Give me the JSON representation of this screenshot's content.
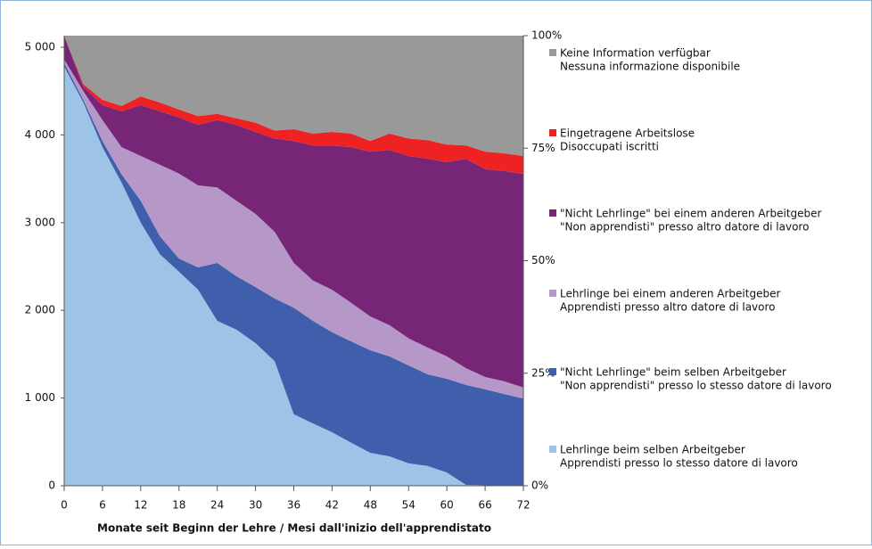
{
  "chart_data": {
    "type": "stacked_area",
    "x_label": "Monate seit Beginn der Lehre / Mesi dall'inizio dell'apprendistato",
    "x": [
      0,
      3,
      6,
      9,
      12,
      15,
      18,
      21,
      24,
      27,
      30,
      33,
      36,
      39,
      42,
      45,
      48,
      51,
      54,
      57,
      60,
      63,
      66,
      69,
      72
    ],
    "xlim": [
      0,
      72
    ],
    "xticks": [
      0,
      6,
      12,
      18,
      24,
      30,
      36,
      42,
      48,
      54,
      60,
      66,
      72
    ],
    "ylim": [
      0,
      5132
    ],
    "yticks": [
      0,
      {
        "value": 1000,
        "label": "1 000"
      },
      {
        "value": 2000,
        "label": "2 000"
      },
      {
        "value": 3000,
        "label": "3 000"
      },
      {
        "value": 4000,
        "label": "4 000"
      },
      {
        "value": 5000,
        "label": "5 000"
      }
    ],
    "y2lim": [
      0,
      100
    ],
    "y2ticks": [
      {
        "value": 0,
        "label": "0%"
      },
      {
        "value": 25,
        "label": "25%"
      },
      {
        "value": 50,
        "label": "50%"
      },
      {
        "value": 75,
        "label": "75%"
      },
      {
        "value": 100,
        "label": "100%"
      }
    ],
    "series": [
      {
        "name": [
          "Lehrlinge beim selben Arbeitgeber",
          "Apprendisti presso lo stesso datore di lavoro"
        ],
        "color": "#9dc3e6",
        "values": [
          4780,
          4370,
          3860,
          3455,
          3000,
          2640,
          2440,
          2235,
          1880,
          1780,
          1626,
          1420,
          815,
          710,
          610,
          490,
          375,
          335,
          255,
          225,
          150,
          10,
          5,
          5,
          5
        ]
      },
      {
        "name": [
          "\"Nicht Lehrlinge\" beim selben Arbeitgeber",
          "\"Non apprendisti\" presso lo stesso datore di lavoro"
        ],
        "color": "#3f5fad",
        "values": [
          40,
          30,
          70,
          95,
          250,
          205,
          150,
          255,
          660,
          610,
          639,
          715,
          1215,
          1170,
          1140,
          1156,
          1170,
          1140,
          1117,
          1045,
          1070,
          1140,
          1095,
          1040,
          990
        ]
      },
      {
        "name": [
          "Lehrlinge bei einem anderen Arbeitgeber",
          "Apprendisti presso altro datore di lavoro"
        ],
        "color": "#b598c8",
        "values": [
          40,
          100,
          240,
          310,
          510,
          815,
          970,
          935,
          860,
          860,
          835,
          760,
          510,
          460,
          485,
          439,
          385,
          355,
          308,
          305,
          255,
          190,
          140,
          145,
          125
        ]
      },
      {
        "name": [
          "\"Nicht Lehrlinge\" bei einem anderen Arbeitgeber",
          "\"Non apprendisti\" presso altro datore di lavoro"
        ],
        "color": "#772677",
        "values": [
          270,
          50,
          170,
          410,
          580,
          610,
          640,
          690,
          770,
          865,
          935,
          1065,
          1390,
          1540,
          1645,
          1775,
          1880,
          2000,
          2080,
          2155,
          2215,
          2390,
          2370,
          2400,
          2435
        ]
      },
      {
        "name": [
          "Eingetragene Arbeitslose",
          "Disoccupati iscritti"
        ],
        "color": "#ee2222",
        "values": [
          2,
          30,
          60,
          60,
          100,
          100,
          90,
          100,
          70,
          75,
          105,
          90,
          135,
          135,
          155,
          155,
          120,
          185,
          200,
          210,
          200,
          150,
          200,
          200,
          205
        ]
      },
      {
        "name": [
          "Keine Information verfügbar",
          "Nessuna informazione disponibile"
        ],
        "color": "#999999",
        "values": [
          0,
          552,
          732,
          802,
          692,
          762,
          842,
          917,
          892,
          942,
          992,
          1082,
          1067,
          1117,
          1097,
          1117,
          1202,
          1117,
          1172,
          1192,
          1242,
          1252,
          1322,
          1342,
          1372
        ]
      }
    ]
  }
}
